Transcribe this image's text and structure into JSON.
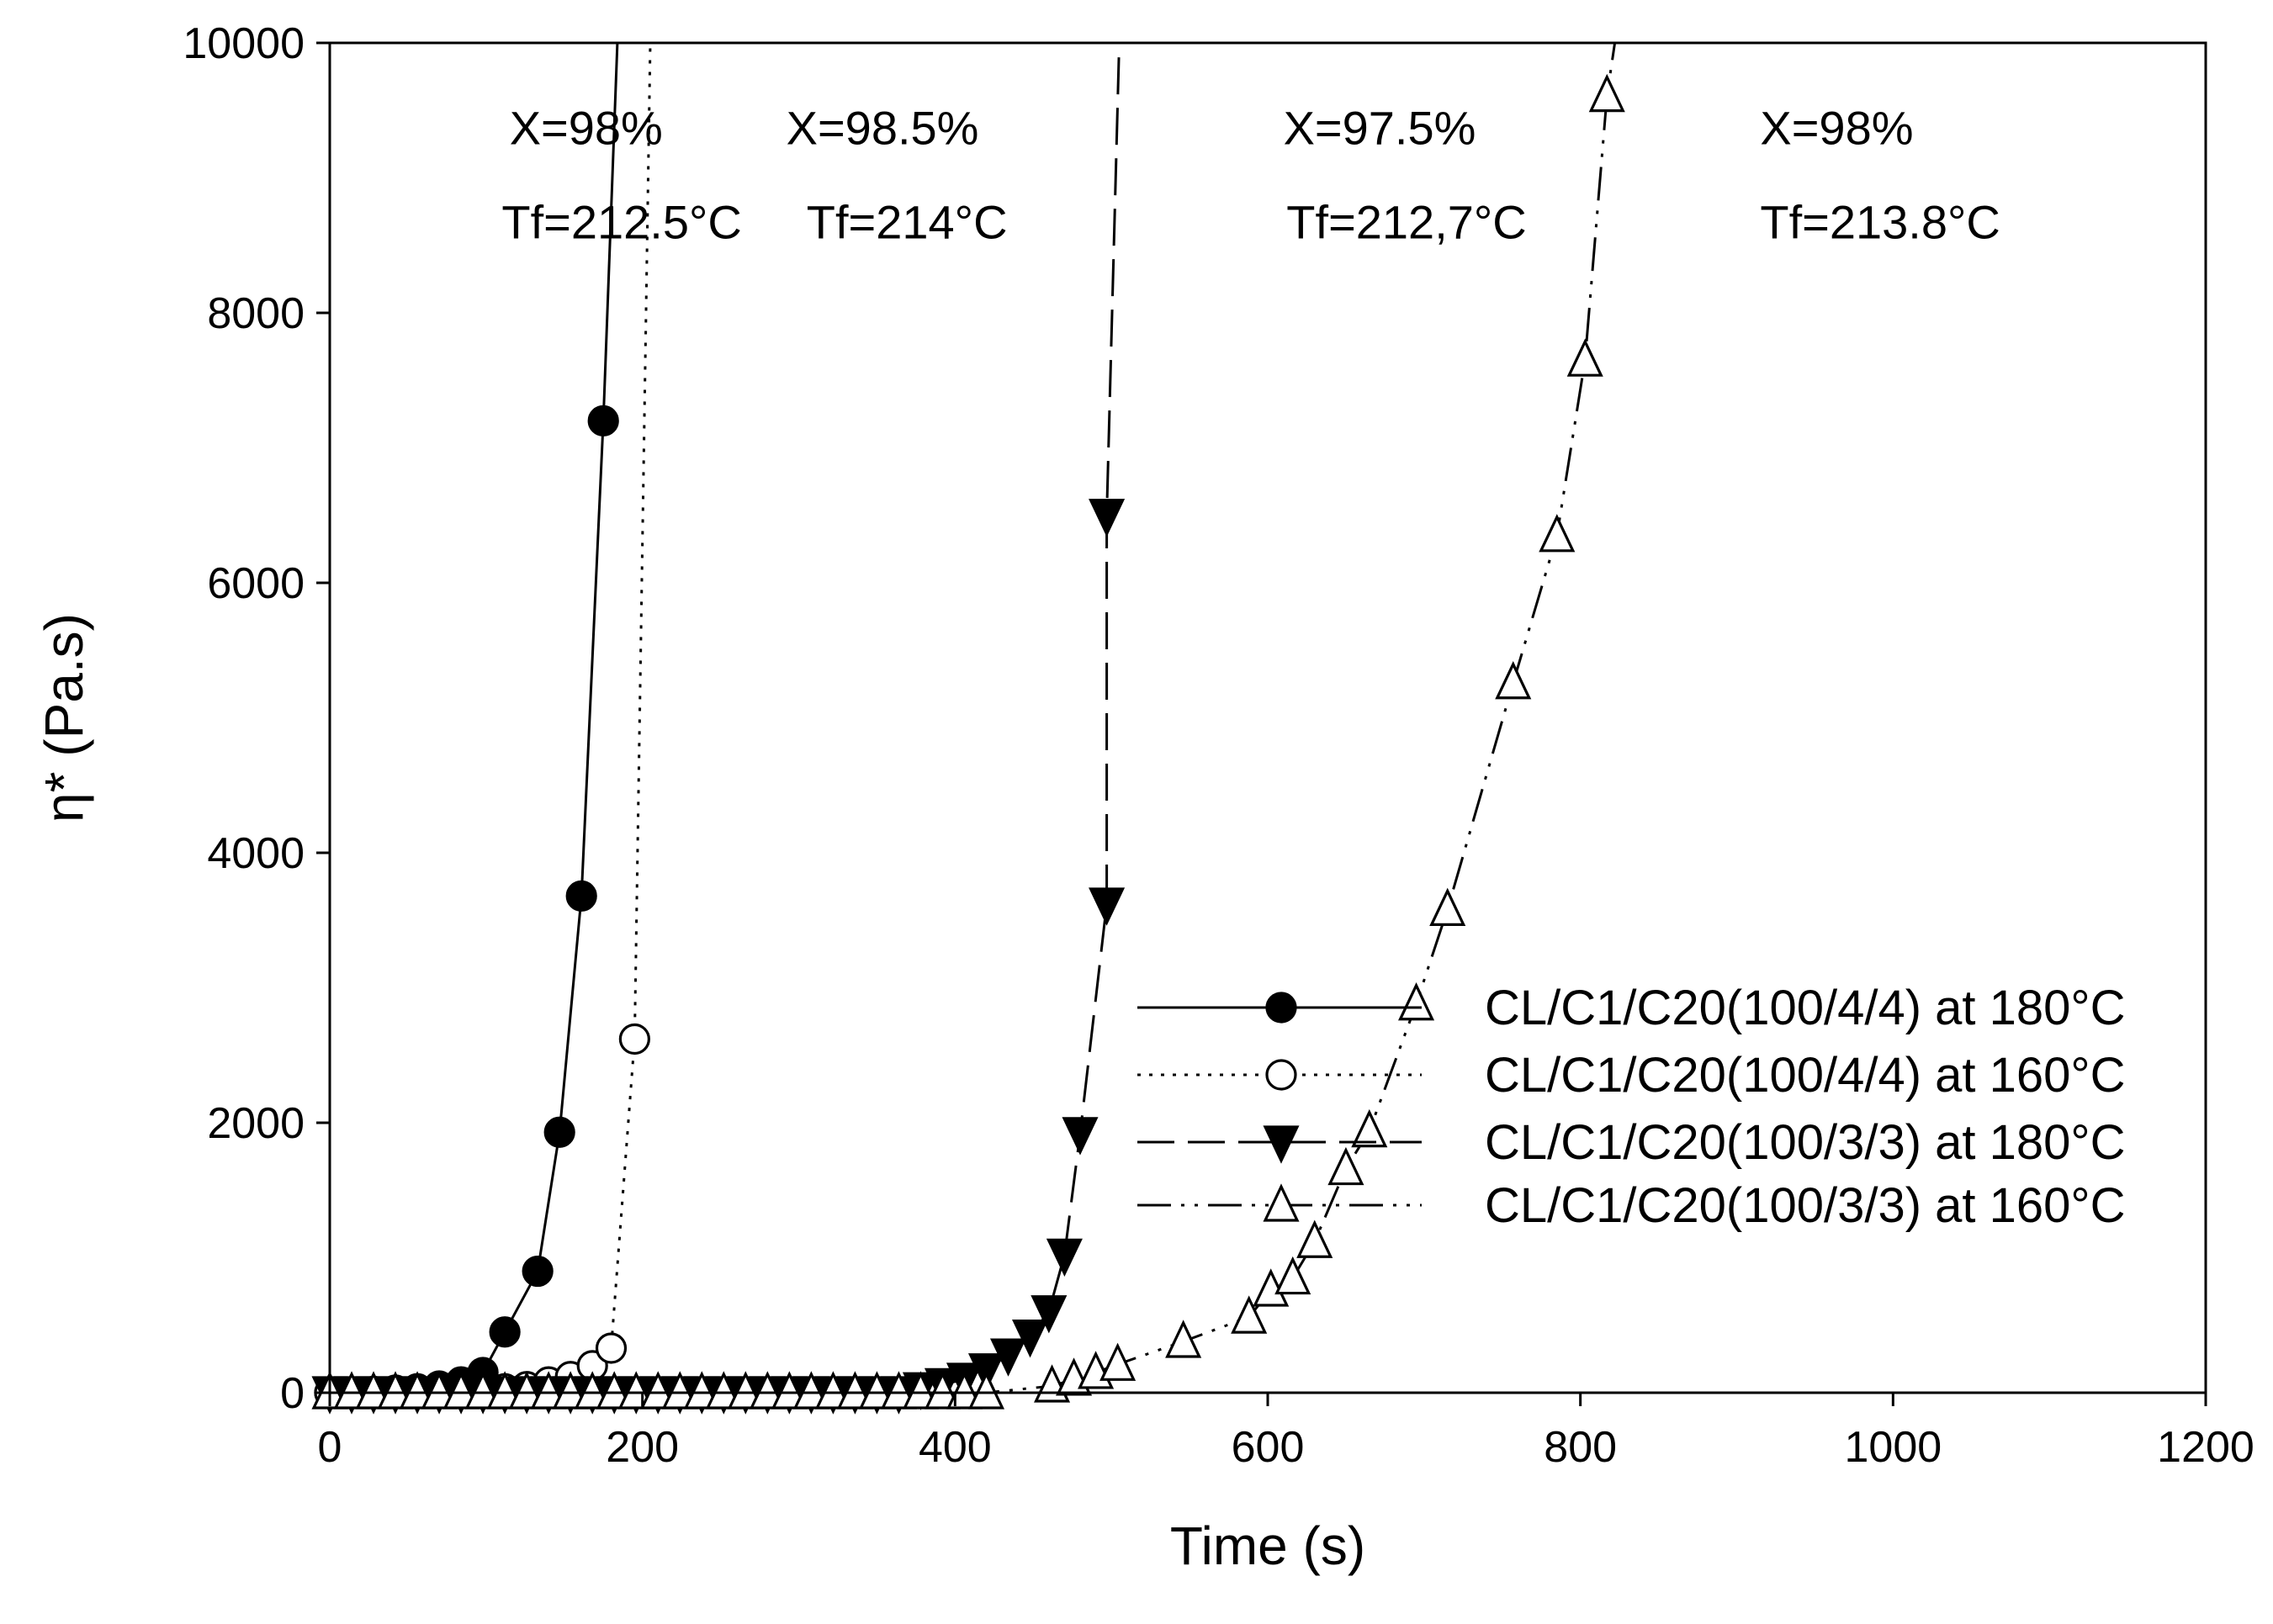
{
  "chart_data": {
    "type": "line",
    "title": "",
    "xlabel": "Time (s)",
    "ylabel": "η* (Pa.s)",
    "xlim": [
      0,
      1200
    ],
    "ylim": [
      0,
      10000
    ],
    "xticks": [
      0,
      200,
      400,
      600,
      800,
      1000,
      1200
    ],
    "yticks": [
      0,
      2000,
      4000,
      6000,
      8000,
      10000
    ],
    "xtick_labels": [
      "0",
      "200",
      "400",
      "600",
      "800",
      "1000",
      "1200"
    ],
    "ytick_labels": [
      "0",
      "2000",
      "4000",
      "6000",
      "8000",
      "10000"
    ],
    "legend_position": "center-right",
    "annotations": [
      {
        "text": "X=98%",
        "x": 115,
        "y": 9250
      },
      {
        "text": "Tf=212.5°C",
        "x": 110,
        "y": 8550
      },
      {
        "text": "X=98.5%",
        "x": 292,
        "y": 9250
      },
      {
        "text": "Tf=214°C",
        "x": 305,
        "y": 8550
      },
      {
        "text": "X=97.5%",
        "x": 610,
        "y": 9250
      },
      {
        "text": "Tf=212,7°C",
        "x": 612,
        "y": 8550
      },
      {
        "text": "X=98%",
        "x": 915,
        "y": 9250
      },
      {
        "text": "Tf=213.8°C",
        "x": 915,
        "y": 8550
      }
    ],
    "series": [
      {
        "name": "CL/C1/C20(100/4/4) at 180°C",
        "marker": "filled-circle",
        "line_style": "solid",
        "x": [
          0,
          14,
          28,
          42,
          56,
          70,
          84,
          98,
          112,
          133,
          147,
          161,
          175
        ],
        "y": [
          0,
          5,
          10,
          20,
          30,
          50,
          80,
          150,
          450,
          900,
          1930,
          3680,
          7200
        ],
        "curve_end": {
          "x": 184,
          "y": 10000
        }
      },
      {
        "name": "CL/C1/C20(100/4/4) at 160°C",
        "marker": "open-circle",
        "line_style": "dotted",
        "x": [
          0,
          14,
          28,
          42,
          56,
          70,
          84,
          98,
          112,
          126,
          140,
          154,
          168,
          180,
          195
        ],
        "y": [
          0,
          2,
          5,
          8,
          10,
          15,
          20,
          25,
          30,
          45,
          80,
          120,
          200,
          330,
          2620
        ],
        "curve_end": {
          "x": 205,
          "y": 10000
        }
      },
      {
        "name": "CL/C1/C20(100/3/3) at 180°C",
        "marker": "filled-triangle-down",
        "line_style": "dashed",
        "x": [
          0,
          14,
          28,
          42,
          56,
          70,
          84,
          98,
          112,
          126,
          140,
          154,
          168,
          182,
          196,
          210,
          224,
          238,
          252,
          266,
          280,
          294,
          308,
          322,
          336,
          350,
          364,
          378,
          392,
          406,
          420,
          434,
          448,
          460,
          470,
          480,
          497
        ],
        "y": [
          0,
          0,
          0,
          0,
          0,
          0,
          0,
          0,
          0,
          0,
          0,
          0,
          0,
          0,
          0,
          0,
          0,
          0,
          0,
          0,
          0,
          0,
          0,
          0,
          0,
          0,
          0,
          30,
          60,
          100,
          170,
          280,
          420,
          600,
          1020,
          1920,
          3620
        ],
        "extra_points": [
          {
            "x": 497,
            "y": 6500
          }
        ],
        "curve_end": {
          "x": 505,
          "y": 10000
        }
      },
      {
        "name": "CL/C1/C20(100/3/3) at 160°C",
        "marker": "open-triangle-up",
        "line_style": "dash-dot-dot",
        "x": [
          0,
          14,
          28,
          42,
          56,
          70,
          84,
          98,
          112,
          126,
          140,
          154,
          168,
          182,
          196,
          210,
          224,
          238,
          252,
          266,
          280,
          294,
          308,
          322,
          336,
          350,
          364,
          378,
          392,
          406,
          420,
          462,
          476,
          490,
          504,
          546,
          588,
          602,
          616,
          630,
          650,
          665,
          695,
          715,
          757,
          785,
          803,
          817
        ],
        "y": [
          0,
          0,
          0,
          0,
          0,
          0,
          0,
          0,
          0,
          0,
          0,
          0,
          0,
          0,
          0,
          0,
          0,
          0,
          0,
          0,
          0,
          0,
          0,
          0,
          0,
          0,
          0,
          0,
          0,
          0,
          0,
          50,
          100,
          150,
          210,
          380,
          560,
          760,
          850,
          1120,
          1660,
          1940,
          2880,
          3580,
          5260,
          6350,
          7650,
          9610
        ],
        "curve_end": {
          "x": 822,
          "y": 10000
        }
      }
    ]
  }
}
